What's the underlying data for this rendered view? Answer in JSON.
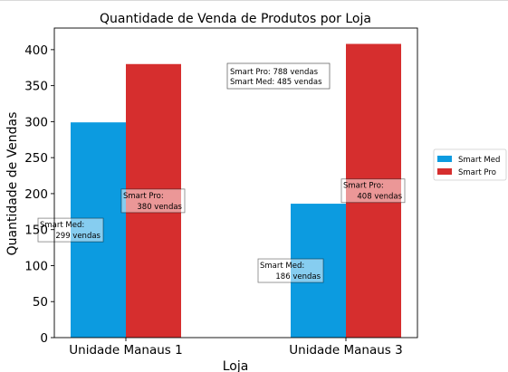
{
  "chart_data": {
    "type": "bar",
    "title": "Quantidade de Venda de Produtos por Loja",
    "xlabel": "Loja",
    "ylabel": "Quantidade de Vendas",
    "categories": [
      "Unidade Manaus 1",
      "Unidade Manaus 3"
    ],
    "series": [
      {
        "name": "Smart Med",
        "values": [
          299,
          186
        ],
        "color": "#0c9be0"
      },
      {
        "name": "Smart Pro",
        "values": [
          380,
          408
        ],
        "color": "#d62e2e"
      }
    ],
    "ylim": [
      0,
      430
    ],
    "yticks": [
      0,
      50,
      100,
      150,
      200,
      250,
      300,
      350,
      400
    ],
    "grid": false,
    "legend_position": "right",
    "data_labels": [
      {
        "series": "Smart Med",
        "category": "Unidade Manaus 1",
        "line1": "Smart Med:",
        "line2": "299 vendas"
      },
      {
        "series": "Smart Pro",
        "category": "Unidade Manaus 1",
        "line1": "Smart Pro:",
        "line2": "380 vendas"
      },
      {
        "series": "Smart Med",
        "category": "Unidade Manaus 3",
        "line1": "Smart Med:",
        "line2": "186 vendas"
      },
      {
        "series": "Smart Pro",
        "category": "Unidade Manaus 3",
        "line1": "Smart Pro:",
        "line2": "408 vendas"
      }
    ],
    "annotation": {
      "line1": "Smart Pro: 788 vendas",
      "line2": "Smart Med: 485 vendas"
    }
  }
}
